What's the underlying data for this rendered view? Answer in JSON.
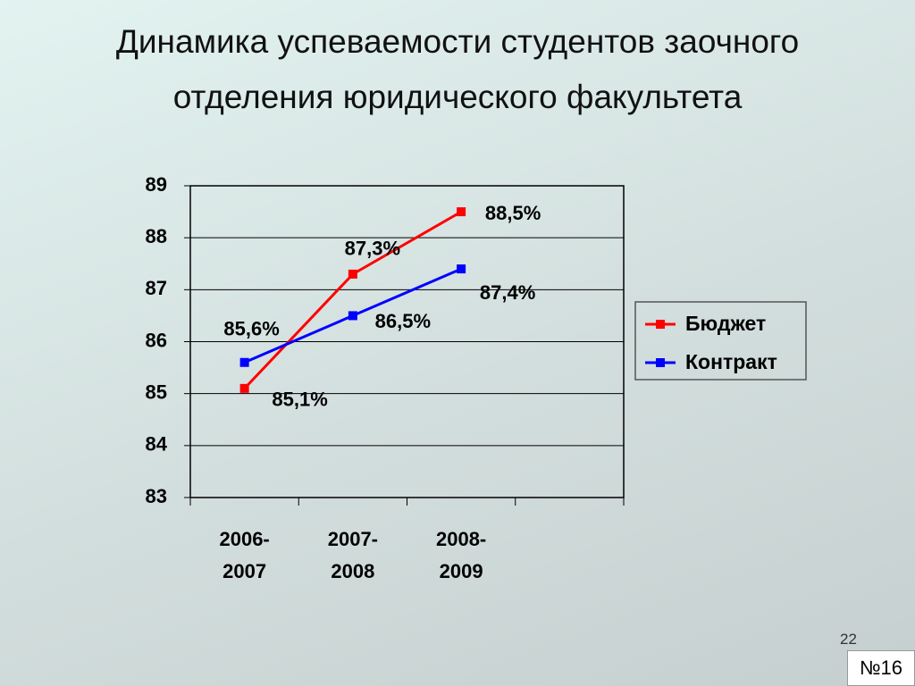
{
  "chart_data": {
    "type": "line",
    "title": "Динамика успеваемости студентов заочного отделения юридического факультета",
    "categories": [
      "2006-2007",
      "2007-2008",
      "2008-2009",
      null
    ],
    "series": [
      {
        "name": "Бюджет",
        "color": "#ff0000",
        "values": [
          85.1,
          87.3,
          88.5,
          null
        ],
        "value_labels": [
          "85,1%",
          "87,3%",
          "88,5%",
          null
        ]
      },
      {
        "name": "Контракт",
        "color": "#0000ff",
        "values": [
          85.6,
          86.5,
          87.4,
          null
        ],
        "value_labels": [
          "85,6%",
          "86,5%",
          "87,4%",
          null
        ]
      }
    ],
    "ylim": [
      83,
      89
    ],
    "yticks": [
      83,
      84,
      85,
      86,
      87,
      88,
      89
    ],
    "grid": true,
    "legend": "right"
  },
  "page_number": "22",
  "slide_label": "№16"
}
